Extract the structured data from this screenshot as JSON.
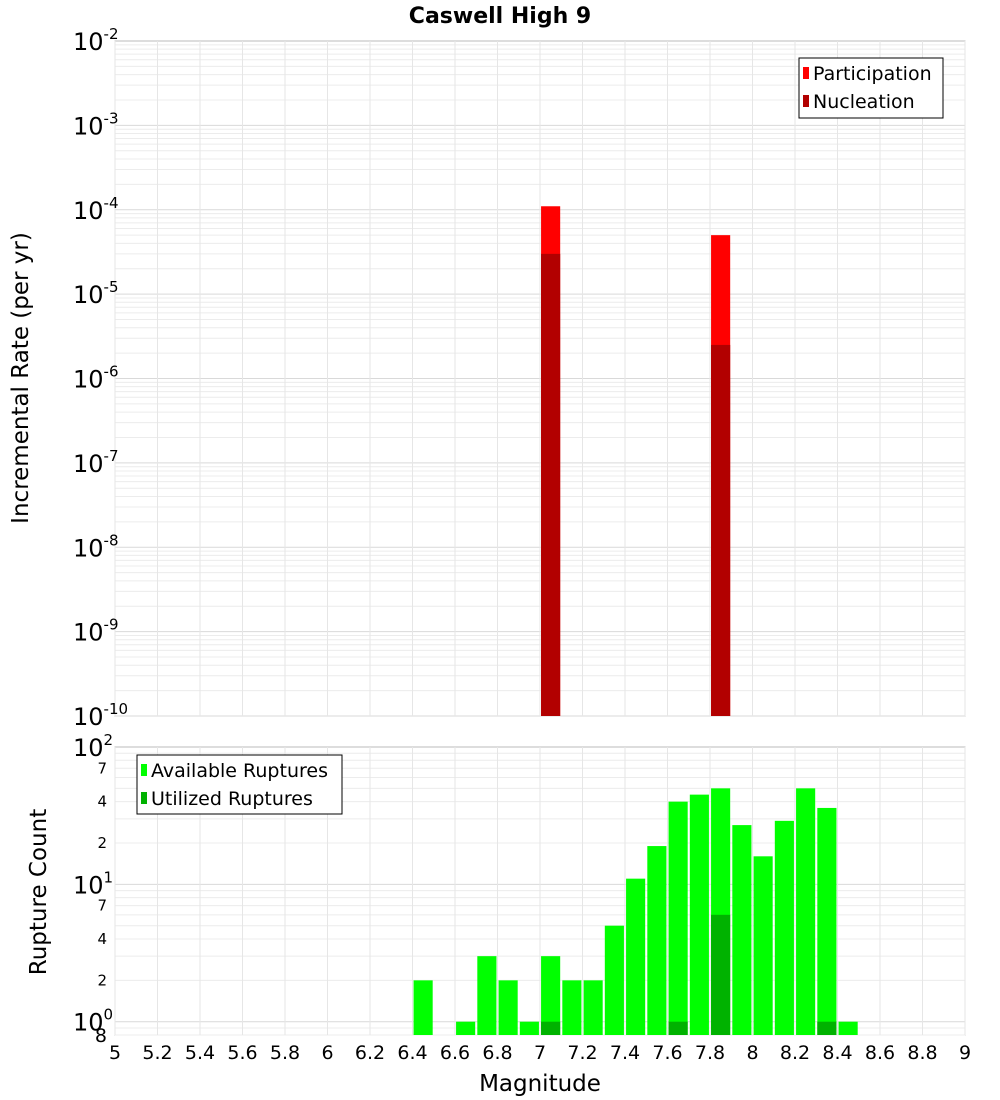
{
  "chart_data": [
    {
      "type": "bar",
      "panel": "top",
      "title": "Caswell High 9",
      "xlabel": "Magnitude",
      "ylabel": "Incremental Rate (per yr)",
      "yscale": "log",
      "ylim": [
        1e-10,
        0.01
      ],
      "xlim": [
        5,
        9
      ],
      "grid": true,
      "legend_position": "top-right",
      "y_ticks": [
        {
          "base": "10",
          "exp": "-2"
        },
        {
          "base": "10",
          "exp": "-3"
        },
        {
          "base": "10",
          "exp": "-4"
        },
        {
          "base": "10",
          "exp": "-5"
        },
        {
          "base": "10",
          "exp": "-6"
        },
        {
          "base": "10",
          "exp": "-7"
        },
        {
          "base": "10",
          "exp": "-8"
        },
        {
          "base": "10",
          "exp": "-9"
        },
        {
          "base": "10",
          "exp": "-10"
        }
      ],
      "series": [
        {
          "name": "Participation",
          "color": "#ff0000",
          "points": [
            {
              "x": 7.05,
              "y": 0.00011
            },
            {
              "x": 7.85,
              "y": 5e-05
            }
          ]
        },
        {
          "name": "Nucleation",
          "color": "#b20000",
          "points": [
            {
              "x": 7.05,
              "y": 3e-05
            },
            {
              "x": 7.85,
              "y": 2.5e-06
            }
          ]
        }
      ]
    },
    {
      "type": "bar",
      "panel": "bottom",
      "xlabel": "Magnitude",
      "ylabel": "Rupture Count",
      "yscale": "log",
      "ylim": [
        0.8,
        100
      ],
      "xlim": [
        5,
        9
      ],
      "grid": true,
      "legend_position": "top-left",
      "x_ticks": [
        "5",
        "5.2",
        "5.4",
        "5.6",
        "5.8",
        "6",
        "6.2",
        "6.4",
        "6.6",
        "6.8",
        "7",
        "7.2",
        "7.4",
        "7.6",
        "7.8",
        "8",
        "8.2",
        "8.4",
        "8.6",
        "8.8",
        "9"
      ],
      "y_major_ticks": [
        {
          "base": "10",
          "exp": "2"
        },
        {
          "base": "10",
          "exp": "1"
        },
        {
          "base": "10",
          "exp": "0"
        }
      ],
      "y_minor_ticks": [
        "7",
        "4",
        "2",
        "7",
        "4",
        "2",
        "8"
      ],
      "series": [
        {
          "name": "Available Ruptures",
          "color": "#00ff00",
          "points": [
            {
              "x": 6.45,
              "y": 2
            },
            {
              "x": 6.65,
              "y": 1
            },
            {
              "x": 6.75,
              "y": 3
            },
            {
              "x": 6.85,
              "y": 2
            },
            {
              "x": 6.95,
              "y": 1
            },
            {
              "x": 7.05,
              "y": 3
            },
            {
              "x": 7.15,
              "y": 2
            },
            {
              "x": 7.25,
              "y": 2
            },
            {
              "x": 7.35,
              "y": 5
            },
            {
              "x": 7.45,
              "y": 11
            },
            {
              "x": 7.55,
              "y": 19
            },
            {
              "x": 7.65,
              "y": 40
            },
            {
              "x": 7.75,
              "y": 45
            },
            {
              "x": 7.85,
              "y": 50
            },
            {
              "x": 7.95,
              "y": 27
            },
            {
              "x": 8.05,
              "y": 16
            },
            {
              "x": 8.15,
              "y": 29
            },
            {
              "x": 8.25,
              "y": 50
            },
            {
              "x": 8.35,
              "y": 36
            },
            {
              "x": 8.45,
              "y": 1
            }
          ]
        },
        {
          "name": "Utilized Ruptures",
          "color": "#00b200",
          "points": [
            {
              "x": 7.05,
              "y": 1
            },
            {
              "x": 7.65,
              "y": 1
            },
            {
              "x": 7.85,
              "y": 6
            },
            {
              "x": 8.35,
              "y": 1
            }
          ]
        }
      ]
    }
  ]
}
